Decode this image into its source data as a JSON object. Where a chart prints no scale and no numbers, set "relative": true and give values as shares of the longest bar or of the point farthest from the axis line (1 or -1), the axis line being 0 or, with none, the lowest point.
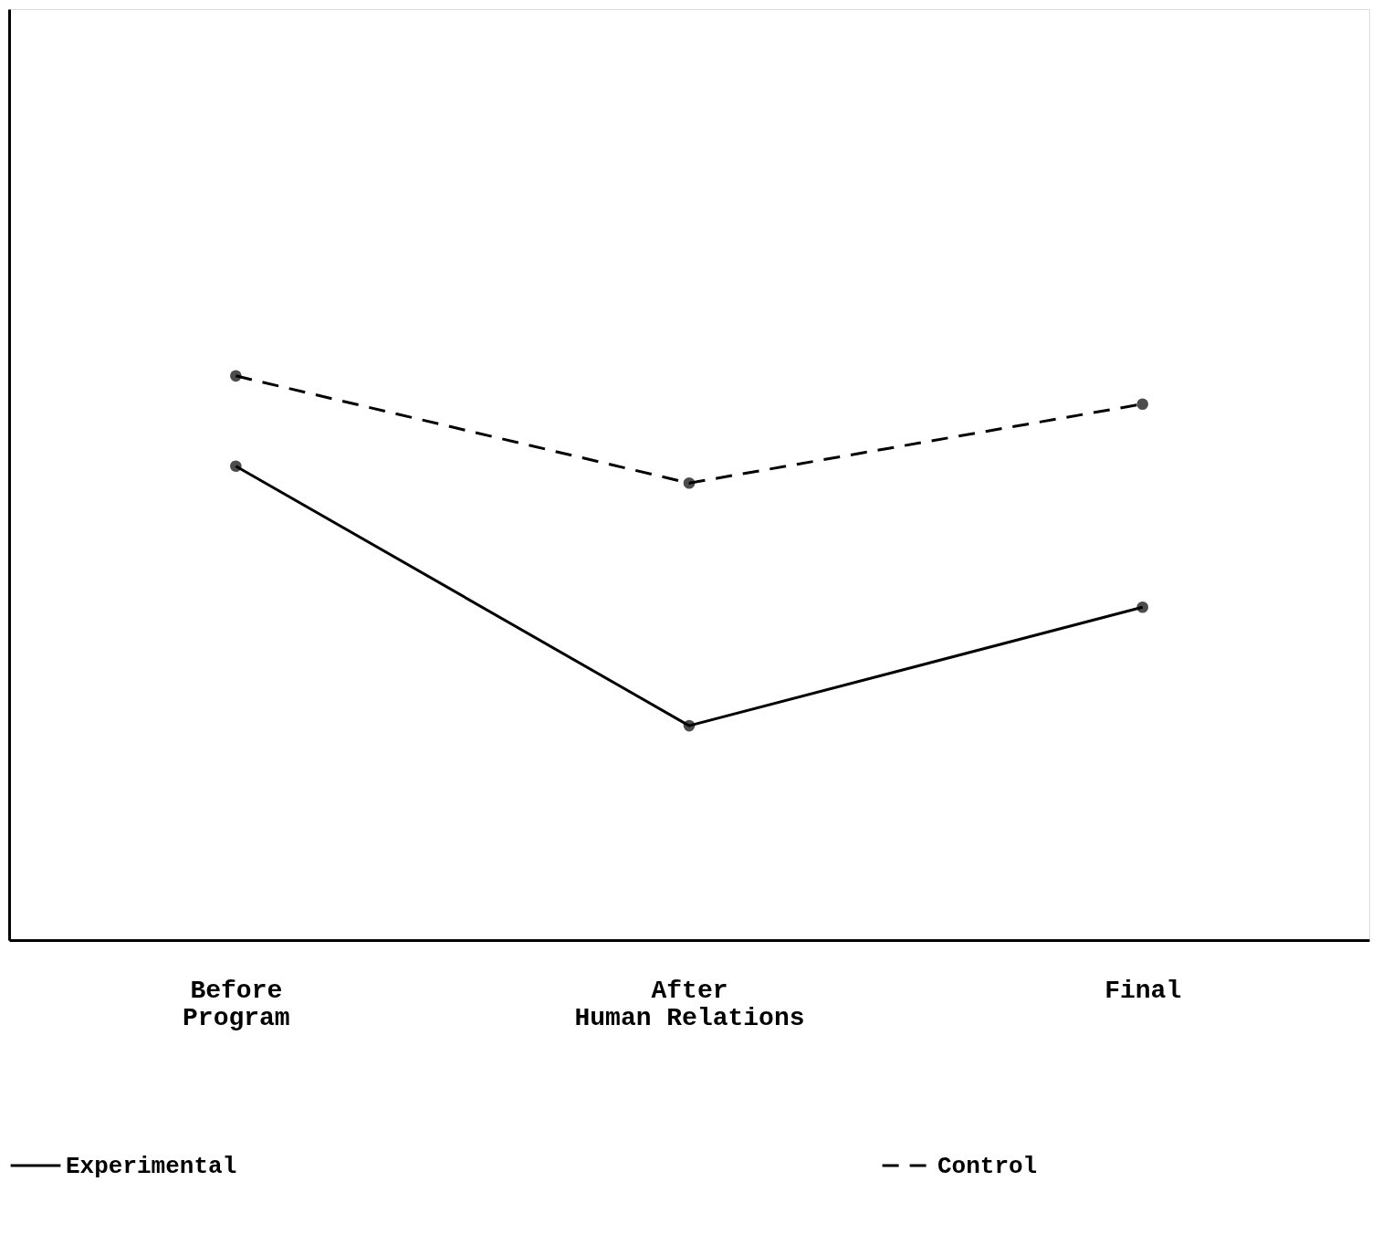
{
  "chart_data": {
    "type": "line",
    "relative": true,
    "categories": [
      "Before Program",
      "After Human Relations",
      "Final"
    ],
    "series": [
      {
        "name": "Experimental",
        "color": "#000000",
        "values": [
          0.84,
          0.38,
          0.59
        ],
        "line_style": "solid"
      },
      {
        "name": "Control",
        "color": "#000000",
        "values": [
          1,
          0.81,
          0.95
        ],
        "line_style": "dashed"
      }
    ],
    "marker": "circle",
    "legend": "bottom",
    "grid": false
  }
}
